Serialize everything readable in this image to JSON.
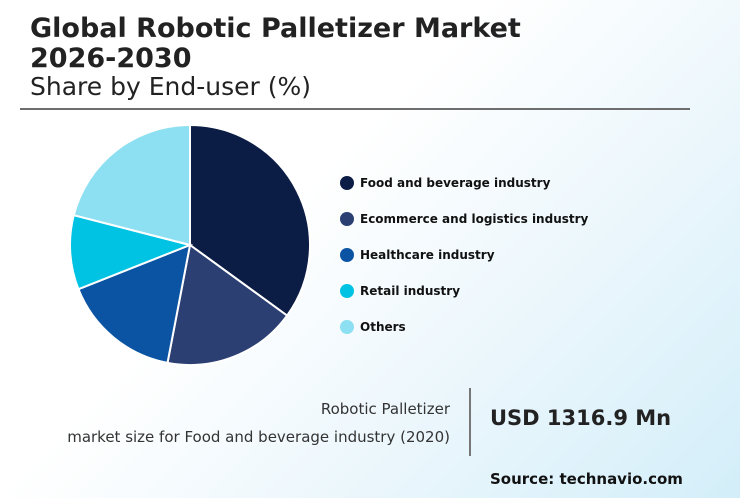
{
  "header": {
    "title": "Global Robotic Palletizer Market\n2026-2030",
    "subtitle": "Share by End-user (%)"
  },
  "chart_data": {
    "type": "pie",
    "categories": [
      "Food and beverage industry",
      "Ecommerce and logistics industry",
      "Healthcare industry",
      "Retail industry",
      "Others"
    ],
    "values": [
      35,
      18,
      16,
      10,
      21
    ],
    "colors": [
      "#0b1c45",
      "#2b3f73",
      "#0b54a3",
      "#00c3e3",
      "#8ddff2"
    ],
    "legend_placement": "right"
  },
  "metric": {
    "label_line1": "Robotic Palletizer",
    "label_line2": "market size for Food and beverage industry (2020)",
    "value": "USD 1316.9 Mn"
  },
  "footer": {
    "source": "Source: technavio.com"
  }
}
